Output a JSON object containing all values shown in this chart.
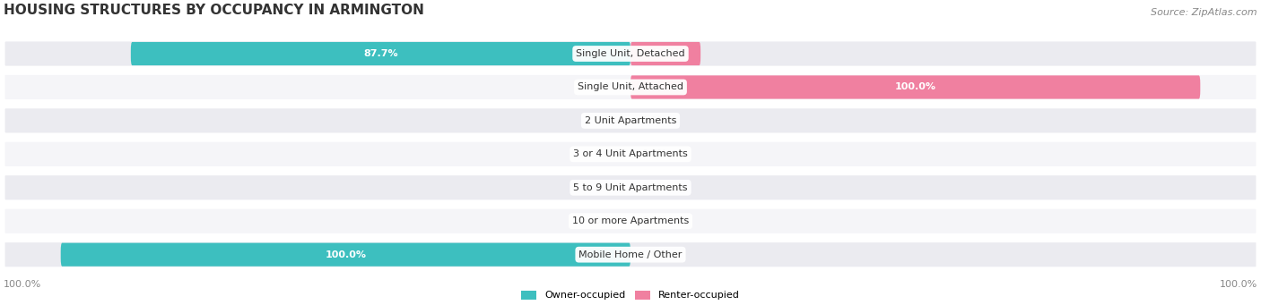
{
  "title": "HOUSING STRUCTURES BY OCCUPANCY IN ARMINGTON",
  "source": "Source: ZipAtlas.com",
  "categories": [
    "Single Unit, Detached",
    "Single Unit, Attached",
    "2 Unit Apartments",
    "3 or 4 Unit Apartments",
    "5 to 9 Unit Apartments",
    "10 or more Apartments",
    "Mobile Home / Other"
  ],
  "owner_values": [
    87.7,
    0.0,
    0.0,
    0.0,
    0.0,
    0.0,
    100.0
  ],
  "renter_values": [
    12.3,
    100.0,
    0.0,
    0.0,
    0.0,
    0.0,
    0.0
  ],
  "owner_color": "#3dbfbf",
  "renter_color": "#f080a0",
  "label_color_dark": "#888888",
  "title_fontsize": 11,
  "source_fontsize": 8,
  "label_fontsize": 8,
  "category_fontsize": 8,
  "axis_label_fontsize": 8,
  "max_value": 100.0,
  "legend_owner": "Owner-occupied",
  "legend_renter": "Renter-occupied",
  "bottom_left_label": "100.0%",
  "bottom_right_label": "100.0%"
}
